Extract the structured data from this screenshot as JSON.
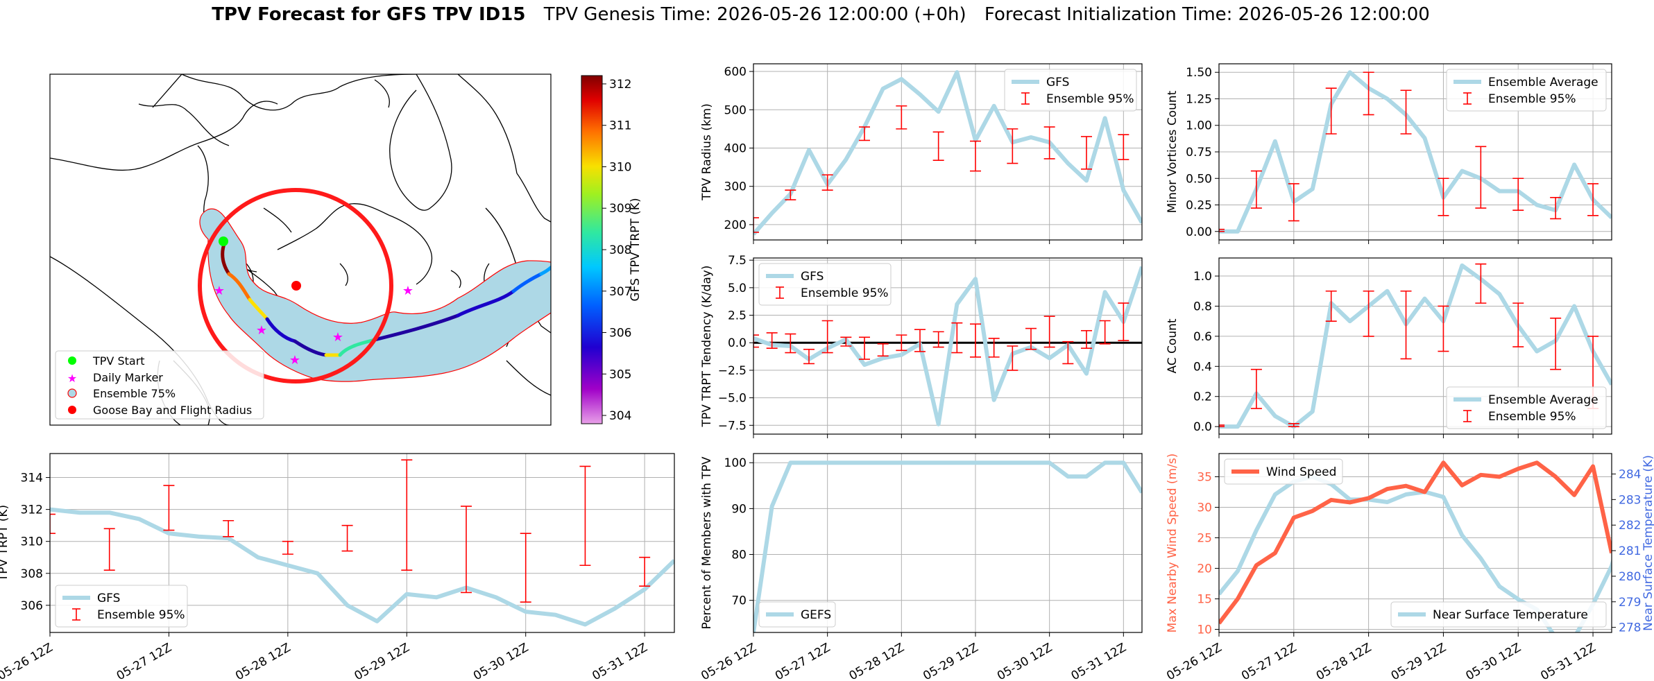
{
  "title": {
    "main": "TPV Forecast for GFS TPV ID15",
    "genesis": "TPV Genesis Time: 2026-05-26 12:00:00 (+0h)",
    "init": "Forecast Initialization Time: 2026-05-26 12:00:00"
  },
  "colors": {
    "gfs_line": "#add8e6",
    "errorbar": "#ff0000",
    "wind": "#ff6347",
    "temp_axis": "#4169e1"
  },
  "date_ticks": [
    "05-26 12Z",
    "05-27 12Z",
    "05-28 12Z",
    "05-29 12Z",
    "05-30 12Z",
    "05-31 12Z"
  ],
  "map": {
    "legend": [
      "TPV Start",
      "Daily Marker",
      "Ensemble 75%",
      "Goose Bay and Flight Radius"
    ],
    "colorbar_label": "GFS TPV TRPT (K)",
    "colorbar_ticks": [
      "312",
      "311",
      "310",
      "309",
      "308",
      "307",
      "306",
      "305",
      "304"
    ],
    "colorbar_range": [
      303.8,
      312.2
    ]
  },
  "chart_data": [
    {
      "id": "radius",
      "type": "line",
      "ylabel": "TPV Radius (km)",
      "ylim": [
        160,
        620
      ],
      "yticks": [
        "200",
        "300",
        "400",
        "500",
        "600"
      ],
      "legend": [
        "GFS",
        "Ensemble 95%"
      ],
      "legend_loc": "upper-right",
      "x": [
        0,
        0.25,
        0.5,
        0.75,
        1,
        1.25,
        1.5,
        1.75,
        2,
        2.25,
        2.5,
        2.75,
        3,
        3.25,
        3.5,
        3.75,
        4,
        4.25,
        4.5,
        4.75,
        5,
        5.25
      ],
      "y": [
        175,
        230,
        280,
        395,
        305,
        370,
        455,
        555,
        580,
        540,
        495,
        598,
        420,
        510,
        415,
        428,
        415,
        360,
        315,
        478,
        290,
        205
      ],
      "err": [
        [
          0,
          180,
          218
        ],
        [
          0.5,
          265,
          290
        ],
        [
          1.0,
          290,
          330
        ],
        [
          1.5,
          420,
          455
        ],
        [
          2.0,
          450,
          510
        ],
        [
          2.5,
          368,
          442
        ],
        [
          3.0,
          340,
          418
        ],
        [
          3.5,
          360,
          450
        ],
        [
          4.0,
          372,
          455
        ],
        [
          4.5,
          345,
          430
        ],
        [
          5.0,
          370,
          435
        ]
      ]
    },
    {
      "id": "minor",
      "type": "line",
      "ylabel": "Minor Vortices Count",
      "ylim": [
        -0.08,
        1.58
      ],
      "yticks": [
        "0.00",
        "0.25",
        "0.50",
        "0.75",
        "1.00",
        "1.25",
        "1.50"
      ],
      "legend": [
        "Ensemble Average",
        "Ensemble 95%"
      ],
      "legend_loc": "upper-right",
      "x": [
        0,
        0.25,
        0.5,
        0.75,
        1,
        1.25,
        1.5,
        1.75,
        2,
        2.25,
        2.5,
        2.75,
        3,
        3.25,
        3.5,
        3.75,
        4,
        4.25,
        4.5,
        4.75,
        5,
        5.25
      ],
      "y": [
        0,
        0,
        0.4,
        0.85,
        0.28,
        0.4,
        1.2,
        1.5,
        1.35,
        1.25,
        1.1,
        0.88,
        0.32,
        0.57,
        0.5,
        0.38,
        0.38,
        0.25,
        0.2,
        0.63,
        0.3,
        0.13
      ],
      "err": [
        [
          0,
          0,
          0.02
        ],
        [
          0.5,
          0.22,
          0.57
        ],
        [
          1.0,
          0.1,
          0.45
        ],
        [
          1.5,
          0.92,
          1.35
        ],
        [
          2.0,
          1.1,
          1.5
        ],
        [
          2.5,
          0.92,
          1.33
        ],
        [
          3.0,
          0.15,
          0.5
        ],
        [
          3.5,
          0.22,
          0.8
        ],
        [
          4.0,
          0.2,
          0.5
        ],
        [
          4.5,
          0.12,
          0.32
        ],
        [
          5.0,
          0.15,
          0.45
        ]
      ]
    },
    {
      "id": "tendency",
      "type": "line",
      "ylabel": "TPV TRPT Tendency (K/day)",
      "ylim": [
        -8.3,
        7.7
      ],
      "yticks": [
        "−7.5",
        "−5.0",
        "−2.5",
        "0.0",
        "2.5",
        "5.0",
        "7.5"
      ],
      "legend": [
        "GFS",
        "Ensemble 95%"
      ],
      "legend_loc": "upper-left",
      "zero_line": true,
      "x": [
        0,
        0.25,
        0.5,
        0.75,
        1,
        1.25,
        1.5,
        1.75,
        2,
        2.25,
        2.5,
        2.75,
        3,
        3.25,
        3.5,
        3.75,
        4,
        4.25,
        4.5,
        4.75,
        5,
        5.25
      ],
      "y": [
        0.4,
        -0.2,
        -0.3,
        -1.5,
        -0.5,
        0.3,
        -2.0,
        -1.4,
        -1.1,
        -0.1,
        -7.4,
        3.5,
        5.8,
        -5.2,
        -1.0,
        -0.4,
        -1.4,
        -0.2,
        -2.8,
        4.6,
        1.9,
        6.9
      ],
      "err": [
        [
          0,
          -0.4,
          0.7
        ],
        [
          0.25,
          -0.5,
          0.9
        ],
        [
          0.5,
          -0.9,
          0.8
        ],
        [
          0.75,
          -1.9,
          -0.6
        ],
        [
          1.0,
          -0.9,
          2.0
        ],
        [
          1.25,
          -0.3,
          0.5
        ],
        [
          1.5,
          -1.5,
          0.5
        ],
        [
          1.75,
          -1.2,
          -0.1
        ],
        [
          2.0,
          -0.7,
          0.7
        ],
        [
          2.25,
          -0.8,
          1.2
        ],
        [
          2.5,
          -0.4,
          1.0
        ],
        [
          2.75,
          -0.9,
          1.8
        ],
        [
          3.0,
          -1.3,
          1.7
        ],
        [
          3.25,
          -1.3,
          0.4
        ],
        [
          3.5,
          -2.5,
          -0.3
        ],
        [
          3.75,
          -0.6,
          1.3
        ],
        [
          4.0,
          -0.4,
          2.4
        ],
        [
          4.25,
          -1.9,
          0.1
        ],
        [
          4.5,
          -0.5,
          1.1
        ],
        [
          4.75,
          -0.1,
          2.0
        ],
        [
          5.0,
          0.2,
          3.6
        ]
      ]
    },
    {
      "id": "ac",
      "type": "line",
      "ylabel": "AC Count",
      "ylim": [
        -0.05,
        1.12
      ],
      "yticks": [
        "0.0",
        "0.2",
        "0.4",
        "0.6",
        "0.8",
        "1.0"
      ],
      "legend": [
        "Ensemble Average",
        "Ensemble 95%"
      ],
      "legend_loc": "lower-right",
      "x": [
        0,
        0.25,
        0.5,
        0.75,
        1,
        1.25,
        1.5,
        1.75,
        2,
        2.25,
        2.5,
        2.75,
        3,
        3.25,
        3.5,
        3.75,
        4,
        4.25,
        4.5,
        4.75,
        5,
        5.25
      ],
      "y": [
        0,
        0,
        0.22,
        0.07,
        0,
        0.1,
        0.82,
        0.7,
        0.8,
        0.9,
        0.68,
        0.85,
        0.7,
        1.07,
        0.98,
        0.88,
        0.67,
        0.5,
        0.57,
        0.8,
        0.5,
        0.28
      ],
      "err": [
        [
          0,
          0,
          0.01
        ],
        [
          0.5,
          0.12,
          0.38
        ],
        [
          1.0,
          0,
          0.02
        ],
        [
          1.5,
          0.7,
          0.9
        ],
        [
          2.0,
          0.6,
          0.9
        ],
        [
          2.5,
          0.45,
          0.9
        ],
        [
          3.0,
          0.5,
          0.8
        ],
        [
          3.5,
          0.82,
          1.08
        ],
        [
          4.0,
          0.53,
          0.82
        ],
        [
          4.5,
          0.38,
          0.72
        ],
        [
          5.0,
          0.12,
          0.6
        ]
      ]
    },
    {
      "id": "trpt",
      "type": "line",
      "ylabel": "TPV TRPT (K)",
      "ylim": [
        304.3,
        315.5
      ],
      "yticks": [
        "306",
        "308",
        "310",
        "312",
        "314"
      ],
      "legend": [
        "GFS",
        "Ensemble 95%"
      ],
      "legend_loc": "lower-left",
      "x": [
        0,
        0.25,
        0.5,
        0.75,
        1,
        1.25,
        1.5,
        1.75,
        2,
        2.25,
        2.5,
        2.75,
        3,
        3.25,
        3.5,
        3.75,
        4,
        4.25,
        4.5,
        4.75,
        5,
        5.25
      ],
      "y": [
        312.0,
        311.8,
        311.8,
        311.4,
        310.5,
        310.3,
        310.2,
        309.0,
        308.5,
        308.0,
        306.0,
        305.0,
        306.7,
        306.5,
        307.1,
        306.5,
        305.6,
        305.4,
        304.8,
        305.8,
        307.0,
        308.8
      ],
      "err": [
        [
          0,
          310.5,
          311.7
        ],
        [
          0.5,
          308.2,
          310.8
        ],
        [
          1.0,
          310.7,
          313.5
        ],
        [
          1.5,
          310.3,
          311.3
        ],
        [
          2.0,
          309.2,
          310.0
        ],
        [
          2.5,
          309.4,
          311.0
        ],
        [
          3.0,
          308.2,
          315.1
        ],
        [
          3.5,
          306.8,
          312.2
        ],
        [
          4.0,
          306.2,
          310.5
        ],
        [
          4.5,
          308.5,
          314.7
        ],
        [
          5.0,
          307.2,
          309.0
        ]
      ]
    },
    {
      "id": "percent",
      "type": "line",
      "ylabel": "Percent of Members with TPV",
      "ylim": [
        63,
        102
      ],
      "yticks": [
        "70",
        "80",
        "90",
        "100"
      ],
      "legend": [
        "GEFS"
      ],
      "legend_loc": "lower-left",
      "x": [
        0,
        0.25,
        0.5,
        0.75,
        1,
        1.25,
        1.5,
        1.75,
        2,
        2.25,
        2.5,
        2.75,
        3,
        3.25,
        3.5,
        3.75,
        4,
        4.25,
        4.5,
        4.75,
        5,
        5.25
      ],
      "y": [
        63,
        90.5,
        100,
        100,
        100,
        100,
        100,
        100,
        100,
        100,
        100,
        100,
        100,
        100,
        100,
        100,
        100,
        97,
        97,
        100,
        100,
        93.5
      ]
    },
    {
      "id": "wind",
      "type": "line",
      "ylabel": "Max Nearby Wind Speed (m/s)",
      "ylim": [
        9.5,
        38.8
      ],
      "yticks": [
        "10",
        "15",
        "20",
        "25",
        "30",
        "35"
      ],
      "legend": [
        "Wind Speed"
      ],
      "legend_loc": "upper-left",
      "x": [
        0,
        0.25,
        0.5,
        0.75,
        1,
        1.25,
        1.5,
        1.75,
        2,
        2.25,
        2.5,
        2.75,
        3,
        3.25,
        3.5,
        3.75,
        4,
        4.25,
        4.5,
        4.75,
        5,
        5.25
      ],
      "y": [
        11.0,
        15.0,
        20.5,
        22.5,
        28.3,
        29.4,
        31.2,
        30.8,
        31.5,
        33.0,
        33.5,
        32.5,
        37.3,
        33.6,
        35.3,
        35.0,
        36.3,
        37.3,
        35.0,
        32.0,
        36.7,
        22.5
      ],
      "y2label": "Near Surface Temperature (K)",
      "y2lim": [
        277.8,
        284.8
      ],
      "y2ticks": [
        "278",
        "279",
        "280",
        "281",
        "282",
        "283",
        "284"
      ],
      "legend2": [
        "Near Surface Temperature"
      ],
      "legend2_loc": "lower-right",
      "y2": [
        279.3,
        280.2,
        281.8,
        283.2,
        283.7,
        283.9,
        283.6,
        283.0,
        283.0,
        282.9,
        283.2,
        283.3,
        283.1,
        281.6,
        280.7,
        279.6,
        279.1,
        278.7,
        277.6,
        277.6,
        278.9,
        280.4,
        283.0
      ],
      "x2": [
        0,
        0.25,
        0.5,
        0.75,
        1,
        1.25,
        1.5,
        1.75,
        2,
        2.25,
        2.5,
        2.75,
        3,
        3.25,
        3.5,
        3.75,
        4,
        4.25,
        4.5,
        4.75,
        5,
        5.25,
        5.5
      ]
    }
  ]
}
